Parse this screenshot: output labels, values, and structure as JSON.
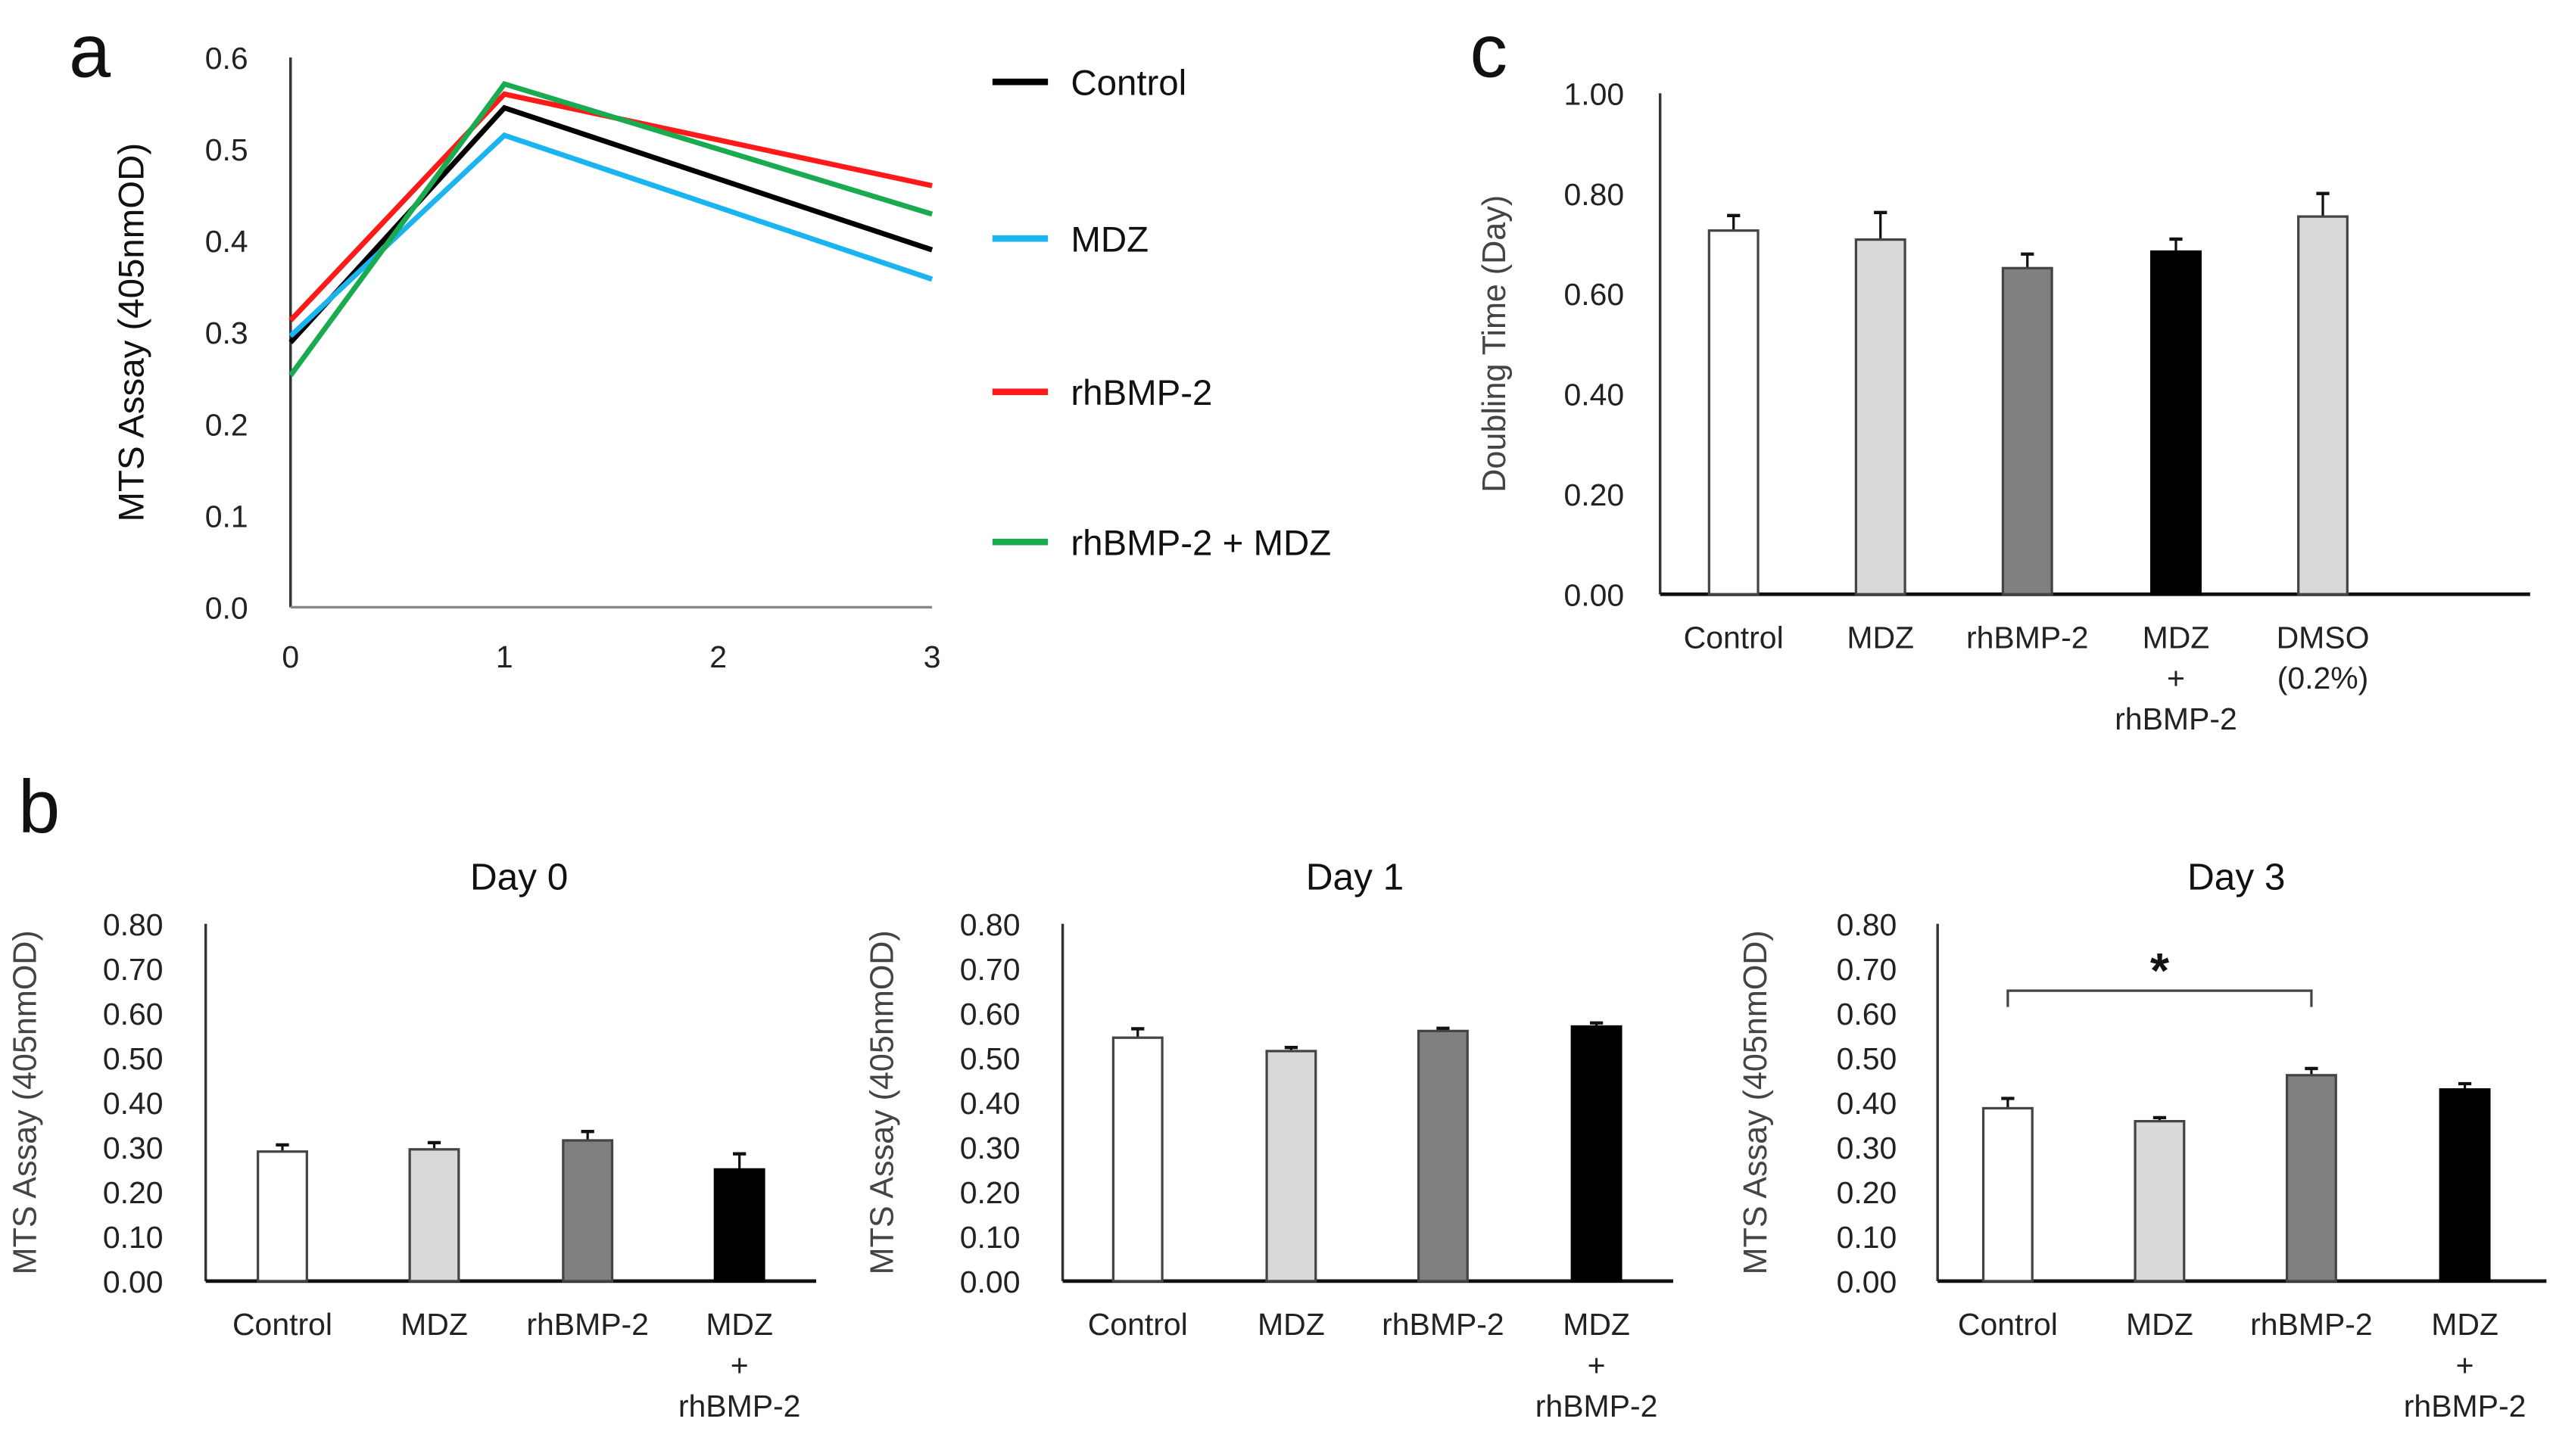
{
  "panel_labels": {
    "a": "a",
    "b": "b",
    "c": "c"
  },
  "chart_data": [
    {
      "id": "a",
      "type": "line",
      "title": "",
      "xlabel": "",
      "ylabel": "MTS Assay (405nmOD)",
      "x": [
        0,
        1,
        3
      ],
      "xticks": [
        "0",
        "1",
        "2",
        "3"
      ],
      "xlim": [
        0,
        3
      ],
      "ylim": [
        0,
        0.6
      ],
      "yticks": [
        "0.0",
        "0.1",
        "0.2",
        "0.3",
        "0.4",
        "0.5",
        "0.6"
      ],
      "legend_position": "right",
      "series": [
        {
          "name": "Control",
          "color": "#000000",
          "values": [
            0.289,
            0.545,
            0.39
          ]
        },
        {
          "name": "MDZ",
          "color": "#1ab4f0",
          "values": [
            0.296,
            0.515,
            0.358
          ]
        },
        {
          "name": "rhBMP-2",
          "color": "#ff1a1a",
          "values": [
            0.313,
            0.56,
            0.46
          ]
        },
        {
          "name": "rhBMP-2 + MDZ",
          "color": "#1aaa50",
          "values": [
            0.253,
            0.571,
            0.429
          ]
        }
      ]
    },
    {
      "id": "b-day0",
      "type": "bar",
      "title": "Day 0",
      "ylabel": "MTS Assay (405nmOD)",
      "categories": [
        "Control",
        "MDZ",
        "rhBMP-2",
        "MDZ + rhBMP-2"
      ],
      "values": [
        0.29,
        0.295,
        0.315,
        0.25
      ],
      "errors": [
        0.015,
        0.015,
        0.02,
        0.035
      ],
      "colors": [
        "#ffffff",
        "#d9d9d9",
        "#808080",
        "#000000"
      ],
      "ylim": [
        0,
        0.8
      ],
      "yticks": [
        "0.00",
        "0.10",
        "0.20",
        "0.30",
        "0.40",
        "0.50",
        "0.60",
        "0.70",
        "0.80"
      ]
    },
    {
      "id": "b-day1",
      "type": "bar",
      "title": "Day 1",
      "ylabel": "MTS Assay (405nmOD)",
      "categories": [
        "Control",
        "MDZ",
        "rhBMP-2",
        "MDZ + rhBMP-2"
      ],
      "values": [
        0.545,
        0.515,
        0.56,
        0.57
      ],
      "errors": [
        0.02,
        0.008,
        0.006,
        0.008
      ],
      "colors": [
        "#ffffff",
        "#d9d9d9",
        "#808080",
        "#000000"
      ],
      "ylim": [
        0,
        0.8
      ],
      "yticks": [
        "0.00",
        "0.10",
        "0.20",
        "0.30",
        "0.40",
        "0.50",
        "0.60",
        "0.70",
        "0.80"
      ]
    },
    {
      "id": "b-day3",
      "type": "bar",
      "title": "Day 3",
      "ylabel": "MTS Assay (405nmOD)",
      "categories": [
        "Control",
        "MDZ",
        "rhBMP-2",
        "MDZ + rhBMP-2"
      ],
      "values": [
        0.387,
        0.358,
        0.461,
        0.429
      ],
      "errors": [
        0.022,
        0.008,
        0.015,
        0.013
      ],
      "colors": [
        "#ffffff",
        "#d9d9d9",
        "#808080",
        "#000000"
      ],
      "ylim": [
        0,
        0.8
      ],
      "yticks": [
        "0.00",
        "0.10",
        "0.20",
        "0.30",
        "0.40",
        "0.50",
        "0.60",
        "0.70",
        "0.80"
      ],
      "annotations": [
        {
          "type": "significance",
          "from": "Control",
          "to": "rhBMP-2",
          "text": "*"
        }
      ]
    },
    {
      "id": "c",
      "type": "bar",
      "title": "",
      "ylabel": "Doubling Time (Day)",
      "categories": [
        "Control",
        "MDZ",
        "rhBMP-2",
        "MDZ + rhBMP-2",
        "DMSO (0.2%)"
      ],
      "values": [
        0.726,
        0.708,
        0.651,
        0.684,
        0.754
      ],
      "errors": [
        0.03,
        0.054,
        0.028,
        0.025,
        0.046
      ],
      "colors": [
        "#ffffff",
        "#d9d9d9",
        "#808080",
        "#000000",
        "#d9d9d9"
      ],
      "ylim": [
        0,
        1.0
      ],
      "yticks": [
        "0.00",
        "0.20",
        "0.40",
        "0.60",
        "0.80",
        "1.00"
      ]
    }
  ]
}
